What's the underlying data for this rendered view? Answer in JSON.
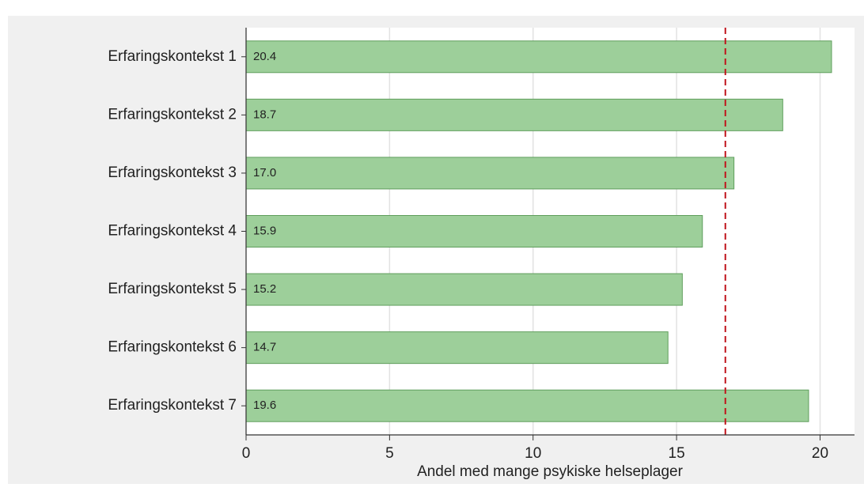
{
  "chart_data": {
    "type": "barh",
    "categories": [
      "Erfaringskontekst 1",
      "Erfaringskontekst 2",
      "Erfaringskontekst 3",
      "Erfaringskontekst 4",
      "Erfaringskontekst 5",
      "Erfaringskontekst 6",
      "Erfaringskontekst 7"
    ],
    "values": [
      20.4,
      18.7,
      17.0,
      15.9,
      15.2,
      14.7,
      19.6
    ],
    "value_labels": [
      "20.4",
      "18.7",
      "17.0",
      "15.9",
      "15.2",
      "14.7",
      "19.6"
    ],
    "color": "#9dcf9a",
    "edge_color": "#5f9e5c",
    "xlabel": "Andel med mange psykiske helseplager",
    "xlim": [
      0,
      21.2
    ],
    "xticks": [
      0,
      5,
      10,
      15,
      20
    ],
    "grid": true,
    "reference_line": 16.7,
    "reference_color": "#c0141c"
  }
}
